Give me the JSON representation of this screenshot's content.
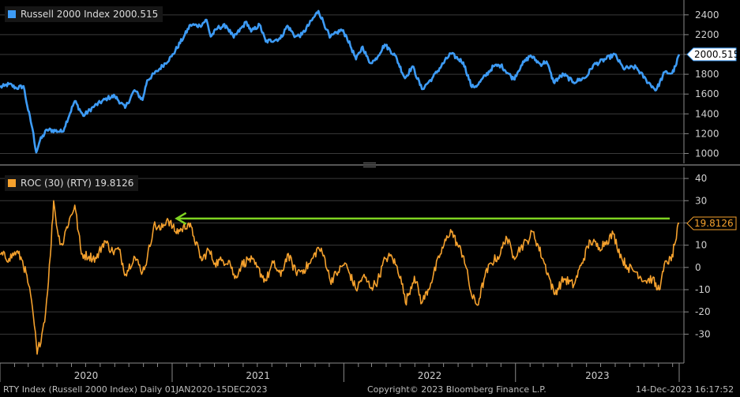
{
  "colors": {
    "rty": "#3d9bf5",
    "roc": "#f5a12d",
    "arrow": "#7ed321",
    "grid": "#3a3a3a",
    "background": "#000000"
  },
  "chart_data": [
    {
      "type": "line",
      "legend_label": "Russell 2000 Index 2000.515",
      "last_value_label": "2000.515",
      "ylim": [
        900,
        2550
      ],
      "y_ticks": [
        1000,
        1200,
        1400,
        1600,
        1800,
        2000,
        2200,
        2400
      ],
      "x_range": [
        "2020-01-01",
        "2023-12-15"
      ],
      "anchors": [
        [
          "2020-01-01",
          1668
        ],
        [
          "2020-01-10",
          1682
        ],
        [
          "2020-01-20",
          1700
        ],
        [
          "2020-02-05",
          1660
        ],
        [
          "2020-02-20",
          1680
        ],
        [
          "2020-02-28",
          1480
        ],
        [
          "2020-03-10",
          1250
        ],
        [
          "2020-03-18",
          1010
        ],
        [
          "2020-03-26",
          1130
        ],
        [
          "2020-04-10",
          1240
        ],
        [
          "2020-05-13",
          1220
        ],
        [
          "2020-06-08",
          1530
        ],
        [
          "2020-06-26",
          1380
        ],
        [
          "2020-07-20",
          1480
        ],
        [
          "2020-08-17",
          1560
        ],
        [
          "2020-09-01",
          1580
        ],
        [
          "2020-09-23",
          1460
        ],
        [
          "2020-10-13",
          1640
        ],
        [
          "2020-10-30",
          1540
        ],
        [
          "2020-11-09",
          1740
        ],
        [
          "2020-11-30",
          1830
        ],
        [
          "2020-12-31",
          1980
        ],
        [
          "2021-01-26",
          2180
        ],
        [
          "2021-02-09",
          2300
        ],
        [
          "2021-03-01",
          2290
        ],
        [
          "2021-03-15",
          2350
        ],
        [
          "2021-03-24",
          2180
        ],
        [
          "2021-04-08",
          2270
        ],
        [
          "2021-04-26",
          2290
        ],
        [
          "2021-05-12",
          2170
        ],
        [
          "2021-06-08",
          2330
        ],
        [
          "2021-06-18",
          2230
        ],
        [
          "2021-07-06",
          2300
        ],
        [
          "2021-07-19",
          2130
        ],
        [
          "2021-08-19",
          2160
        ],
        [
          "2021-09-03",
          2290
        ],
        [
          "2021-09-20",
          2180
        ],
        [
          "2021-10-04",
          2200
        ],
        [
          "2021-11-08",
          2440
        ],
        [
          "2021-11-26",
          2250
        ],
        [
          "2021-12-02",
          2170
        ],
        [
          "2021-12-27",
          2250
        ],
        [
          "2022-01-07",
          2180
        ],
        [
          "2022-01-27",
          1950
        ],
        [
          "2022-02-10",
          2080
        ],
        [
          "2022-02-24",
          1920
        ],
        [
          "2022-03-08",
          1940
        ],
        [
          "2022-03-29",
          2100
        ],
        [
          "2022-04-20",
          1990
        ],
        [
          "2022-05-11",
          1760
        ],
        [
          "2022-05-27",
          1880
        ],
        [
          "2022-06-16",
          1650
        ],
        [
          "2022-07-08",
          1760
        ],
        [
          "2022-08-16",
          2010
        ],
        [
          "2022-09-12",
          1920
        ],
        [
          "2022-09-30",
          1670
        ],
        [
          "2022-10-12",
          1690
        ],
        [
          "2022-11-15",
          1880
        ],
        [
          "2022-12-01",
          1890
        ],
        [
          "2022-12-28",
          1750
        ],
        [
          "2023-01-13",
          1890
        ],
        [
          "2023-02-02",
          1990
        ],
        [
          "2023-02-23",
          1900
        ],
        [
          "2023-03-08",
          1930
        ],
        [
          "2023-03-23",
          1720
        ],
        [
          "2023-04-13",
          1800
        ],
        [
          "2023-05-04",
          1720
        ],
        [
          "2023-05-31",
          1770
        ],
        [
          "2023-06-15",
          1890
        ],
        [
          "2023-07-31",
          2000
        ],
        [
          "2023-08-18",
          1860
        ],
        [
          "2023-09-14",
          1870
        ],
        [
          "2023-10-06",
          1740
        ],
        [
          "2023-10-27",
          1640
        ],
        [
          "2023-11-14",
          1820
        ],
        [
          "2023-11-30",
          1810
        ],
        [
          "2023-12-07",
          1880
        ],
        [
          "2023-12-15",
          2000.515
        ]
      ]
    },
    {
      "type": "line",
      "legend_label": "ROC (30) (RTY) 19.8126",
      "last_value_label": "19.8126",
      "ylim": [
        -43,
        45
      ],
      "y_ticks": [
        -30,
        -20,
        -10,
        0,
        10,
        20,
        30,
        40
      ],
      "x_range": [
        "2020-01-01",
        "2023-12-15"
      ],
      "anchors": [
        [
          "2020-01-01",
          6
        ],
        [
          "2020-01-20",
          4
        ],
        [
          "2020-02-05",
          7
        ],
        [
          "2020-02-18",
          3
        ],
        [
          "2020-03-02",
          -8
        ],
        [
          "2020-03-12",
          -22
        ],
        [
          "2020-03-20",
          -39
        ],
        [
          "2020-03-30",
          -30
        ],
        [
          "2020-04-07",
          -20
        ],
        [
          "2020-04-17",
          5
        ],
        [
          "2020-04-24",
          30
        ],
        [
          "2020-05-04",
          14
        ],
        [
          "2020-05-13",
          10
        ],
        [
          "2020-05-20",
          17
        ],
        [
          "2020-06-08",
          28
        ],
        [
          "2020-06-22",
          6
        ],
        [
          "2020-07-08",
          5
        ],
        [
          "2020-07-24",
          4
        ],
        [
          "2020-08-10",
          12
        ],
        [
          "2020-08-28",
          7
        ],
        [
          "2020-09-10",
          8
        ],
        [
          "2020-09-24",
          -3
        ],
        [
          "2020-10-12",
          5
        ],
        [
          "2020-10-30",
          -2
        ],
        [
          "2020-11-09",
          4
        ],
        [
          "2020-11-23",
          19
        ],
        [
          "2020-12-08",
          17
        ],
        [
          "2020-12-22",
          22
        ],
        [
          "2021-01-08",
          16
        ],
        [
          "2021-01-21",
          17
        ],
        [
          "2021-02-05",
          20
        ],
        [
          "2021-02-16",
          14
        ],
        [
          "2021-03-05",
          3
        ],
        [
          "2021-03-19",
          8
        ],
        [
          "2021-04-02",
          2
        ],
        [
          "2021-04-16",
          3
        ],
        [
          "2021-05-03",
          3
        ],
        [
          "2021-05-14",
          -5
        ],
        [
          "2021-05-28",
          1
        ],
        [
          "2021-06-14",
          4
        ],
        [
          "2021-06-30",
          0
        ],
        [
          "2021-07-19",
          -6
        ],
        [
          "2021-08-04",
          2
        ],
        [
          "2021-08-20",
          -4
        ],
        [
          "2021-09-03",
          6
        ],
        [
          "2021-09-21",
          -2
        ],
        [
          "2021-10-08",
          -1
        ],
        [
          "2021-10-22",
          2
        ],
        [
          "2021-11-08",
          9
        ],
        [
          "2021-11-22",
          4
        ],
        [
          "2021-12-03",
          -6
        ],
        [
          "2021-12-20",
          -2
        ],
        [
          "2022-01-03",
          2
        ],
        [
          "2022-01-14",
          -3
        ],
        [
          "2022-01-27",
          -10
        ],
        [
          "2022-02-11",
          -4
        ],
        [
          "2022-03-01",
          -9
        ],
        [
          "2022-03-14",
          -6
        ],
        [
          "2022-03-30",
          4
        ],
        [
          "2022-04-13",
          5
        ],
        [
          "2022-05-02",
          -4
        ],
        [
          "2022-05-12",
          -16
        ],
        [
          "2022-05-31",
          -4
        ],
        [
          "2022-06-16",
          -16
        ],
        [
          "2022-07-05",
          -7
        ],
        [
          "2022-07-25",
          6
        ],
        [
          "2022-08-16",
          17
        ],
        [
          "2022-08-31",
          10
        ],
        [
          "2022-09-13",
          5
        ],
        [
          "2022-09-30",
          -13
        ],
        [
          "2022-10-12",
          -17
        ],
        [
          "2022-10-28",
          -4
        ],
        [
          "2022-11-10",
          2
        ],
        [
          "2022-11-30",
          6
        ],
        [
          "2022-12-12",
          14
        ],
        [
          "2022-12-28",
          5
        ],
        [
          "2023-01-12",
          9
        ],
        [
          "2023-01-26",
          12
        ],
        [
          "2023-02-07",
          16
        ],
        [
          "2023-02-28",
          4
        ],
        [
          "2023-03-13",
          -4
        ],
        [
          "2023-03-24",
          -12
        ],
        [
          "2023-04-14",
          -5
        ],
        [
          "2023-05-05",
          -8
        ],
        [
          "2023-05-22",
          2
        ],
        [
          "2023-06-09",
          12
        ],
        [
          "2023-06-28",
          9
        ],
        [
          "2023-07-14",
          12
        ],
        [
          "2023-07-28",
          15
        ],
        [
          "2023-08-15",
          4
        ],
        [
          "2023-08-28",
          0
        ],
        [
          "2023-09-15",
          -2
        ],
        [
          "2023-10-03",
          -6
        ],
        [
          "2023-10-19",
          -5
        ],
        [
          "2023-10-30",
          -10
        ],
        [
          "2023-11-06",
          -7
        ],
        [
          "2023-11-17",
          3
        ],
        [
          "2023-11-28",
          3
        ],
        [
          "2023-12-05",
          10
        ],
        [
          "2023-12-15",
          19.8126
        ]
      ]
    }
  ],
  "x_axis": {
    "year_labels": [
      "2020",
      "2021",
      "2022",
      "2023"
    ]
  },
  "footer": {
    "left": "RTY Index (Russell 2000 Index)  Daily 01JAN2020-15DEC2023",
    "center": "Copyright© 2023 Bloomberg Finance L.P.",
    "right": "14-Dec-2023 16:17:52"
  }
}
